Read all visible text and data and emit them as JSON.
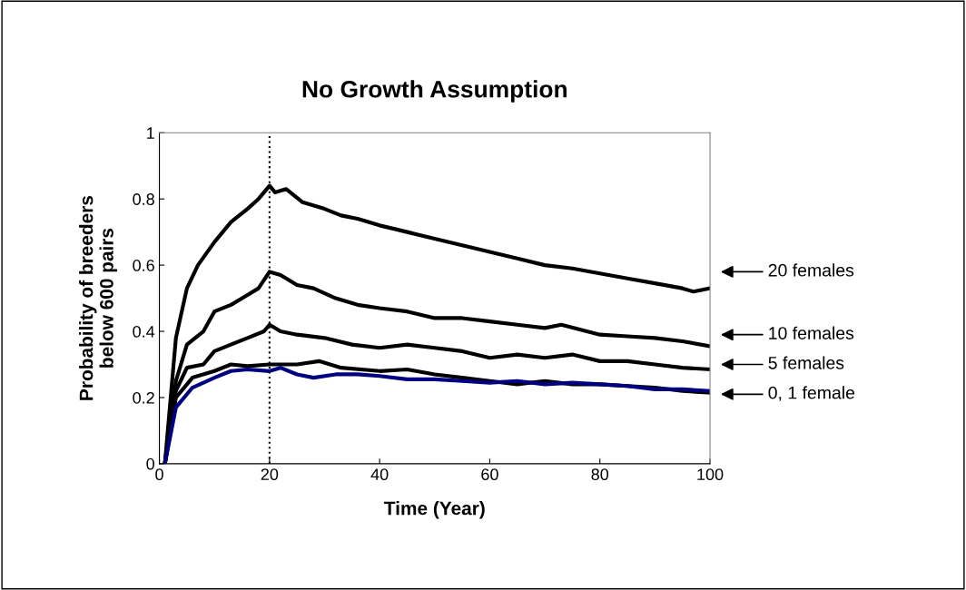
{
  "chart_data": {
    "type": "line",
    "title": "No Growth Assumption",
    "xlabel": "Time (Year)",
    "ylabel": "Probability of breeders\nbelow 600 pairs",
    "xlim": [
      0,
      100
    ],
    "xticks": [
      0,
      20,
      40,
      60,
      80,
      100
    ],
    "ylim": [
      0,
      1
    ],
    "yticks": [
      0,
      0.2,
      0.4,
      0.6,
      0.8,
      1
    ],
    "grid": false,
    "marker": "none",
    "line_style": "solid",
    "series": [
      {
        "color": "#000000",
        "x": [
          1,
          3,
          5,
          7,
          10,
          13,
          16,
          18,
          20,
          21,
          23,
          26,
          30,
          33,
          36,
          40,
          45,
          50,
          55,
          60,
          65,
          70,
          75,
          80,
          85,
          90,
          95,
          97,
          100
        ],
        "values": [
          0,
          0.38,
          0.53,
          0.6,
          0.67,
          0.73,
          0.77,
          0.8,
          0.84,
          0.82,
          0.83,
          0.79,
          0.77,
          0.75,
          0.74,
          0.72,
          0.7,
          0.68,
          0.66,
          0.64,
          0.62,
          0.6,
          0.59,
          0.575,
          0.56,
          0.545,
          0.53,
          0.52,
          0.53
        ]
      },
      {
        "color": "#000000",
        "x": [
          1,
          3,
          5,
          8,
          10,
          13,
          16,
          18,
          20,
          22,
          25,
          28,
          32,
          36,
          40,
          45,
          50,
          55,
          60,
          65,
          70,
          73,
          80,
          85,
          90,
          95,
          100
        ],
        "values": [
          0,
          0.25,
          0.36,
          0.4,
          0.46,
          0.48,
          0.51,
          0.53,
          0.58,
          0.57,
          0.54,
          0.53,
          0.5,
          0.48,
          0.47,
          0.46,
          0.44,
          0.44,
          0.43,
          0.42,
          0.41,
          0.42,
          0.39,
          0.385,
          0.38,
          0.37,
          0.355
        ]
      },
      {
        "color": "#000000",
        "x": [
          1,
          3,
          5,
          8,
          10,
          13,
          16,
          19,
          20,
          22,
          25,
          30,
          35,
          40,
          45,
          50,
          55,
          60,
          65,
          70,
          75,
          80,
          85,
          90,
          95,
          100
        ],
        "values": [
          0,
          0.22,
          0.29,
          0.3,
          0.34,
          0.36,
          0.38,
          0.4,
          0.42,
          0.4,
          0.39,
          0.38,
          0.36,
          0.35,
          0.36,
          0.35,
          0.34,
          0.32,
          0.33,
          0.32,
          0.33,
          0.31,
          0.31,
          0.3,
          0.29,
          0.285
        ]
      },
      {
        "color": "#000000",
        "x": [
          1,
          3,
          6,
          10,
          13,
          16,
          20,
          25,
          29,
          33,
          40,
          45,
          50,
          55,
          60,
          65,
          70,
          75,
          80,
          85,
          90,
          95,
          100
        ],
        "values": [
          0,
          0.2,
          0.26,
          0.28,
          0.3,
          0.295,
          0.3,
          0.3,
          0.31,
          0.29,
          0.28,
          0.285,
          0.27,
          0.26,
          0.25,
          0.24,
          0.25,
          0.24,
          0.24,
          0.235,
          0.23,
          0.22,
          0.215
        ]
      },
      {
        "color": "#000080",
        "x": [
          1,
          3,
          6,
          10,
          13,
          16,
          20,
          22,
          25,
          28,
          32,
          36,
          40,
          45,
          50,
          55,
          60,
          65,
          70,
          75,
          80,
          85,
          90,
          95,
          100
        ],
        "values": [
          0,
          0.17,
          0.23,
          0.26,
          0.28,
          0.285,
          0.28,
          0.29,
          0.27,
          0.26,
          0.27,
          0.27,
          0.265,
          0.255,
          0.255,
          0.25,
          0.245,
          0.25,
          0.24,
          0.245,
          0.24,
          0.235,
          0.225,
          0.225,
          0.22
        ]
      }
    ],
    "ref_lines": [
      {
        "axis": "x",
        "value": 20,
        "color": "#000000",
        "line_style": "dotted"
      }
    ],
    "annotations": [
      "20 females",
      "10 females",
      "5 females",
      "0, 1 female"
    ]
  }
}
